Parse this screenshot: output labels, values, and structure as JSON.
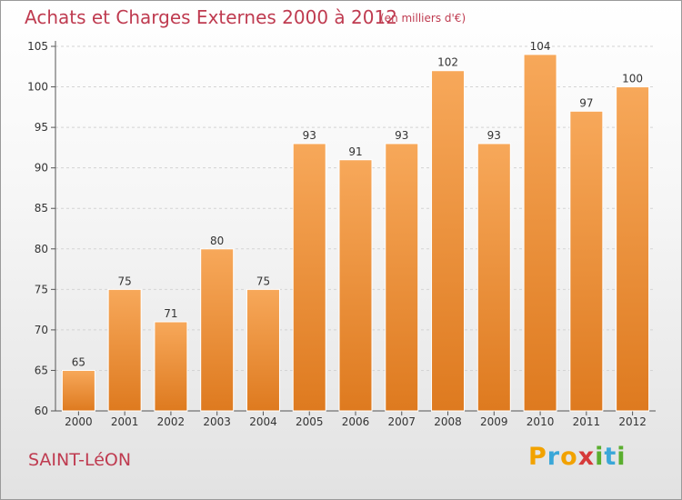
{
  "header": {
    "title": "Achats et Charges Externes 2000 à 2012",
    "subtitle": "(en milliers d'€)"
  },
  "footer": {
    "place": "SAINT-LéON",
    "brand_letters": [
      {
        "ch": "P",
        "color": "#f2a200"
      },
      {
        "ch": "r",
        "color": "#3aa7d8"
      },
      {
        "ch": "o",
        "color": "#f2a200"
      },
      {
        "ch": "x",
        "color": "#d63a3a"
      },
      {
        "ch": "i",
        "color": "#5aae2e"
      },
      {
        "ch": "t",
        "color": "#3aa7d8"
      },
      {
        "ch": "i",
        "color": "#5aae2e"
      }
    ]
  },
  "colors": {
    "bar_light": "#f7a85a",
    "bar_dark": "#de7a1f",
    "text_accent": "#bf3b50",
    "grid": "#d4d4d4",
    "axis": "#555555"
  },
  "chart_data": {
    "type": "bar",
    "categories": [
      "2000",
      "2001",
      "2002",
      "2003",
      "2004",
      "2005",
      "2006",
      "2007",
      "2008",
      "2009",
      "2010",
      "2011",
      "2012"
    ],
    "values": [
      65,
      75,
      71,
      80,
      75,
      93,
      91,
      93,
      102,
      93,
      104,
      97,
      100
    ],
    "data_labels": [
      "65",
      "75",
      "71",
      "80",
      "75",
      "93",
      "91",
      "93",
      "102",
      "93",
      "104",
      "97",
      "100"
    ],
    "ylim": [
      60,
      105
    ],
    "yticks": [
      60,
      65,
      70,
      75,
      80,
      85,
      90,
      95,
      100,
      105
    ],
    "grid": "horizontal dashed",
    "legend": "none"
  }
}
